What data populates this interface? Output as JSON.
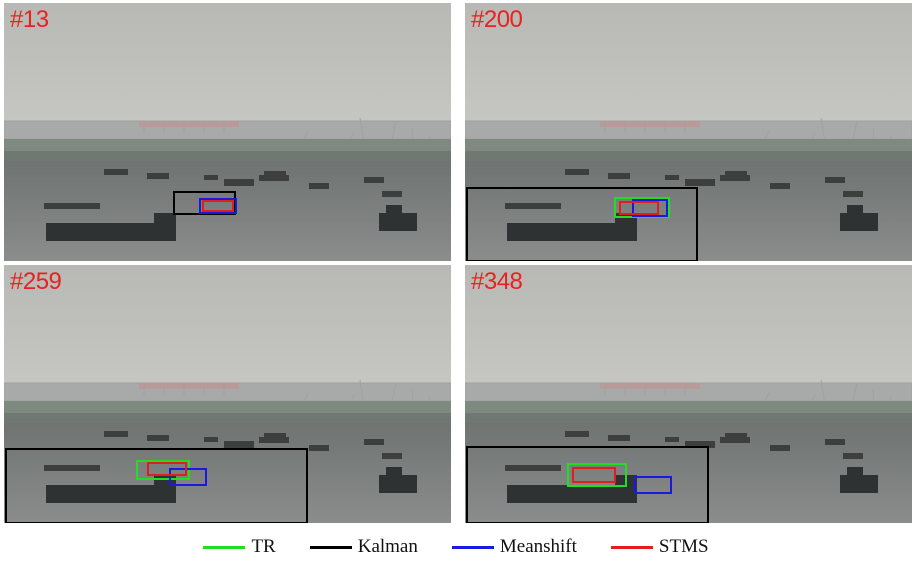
{
  "frames": [
    {
      "label": "#13"
    },
    {
      "label": "#200"
    },
    {
      "label": "#259"
    },
    {
      "label": "#348"
    }
  ],
  "legend": [
    {
      "name": "TR",
      "color": "#22dd22"
    },
    {
      "name": "Kalman",
      "color": "#000000"
    },
    {
      "name": "Meanshift",
      "color": "#1a1adf"
    },
    {
      "name": "STMS",
      "color": "#e11d1d"
    }
  ]
}
